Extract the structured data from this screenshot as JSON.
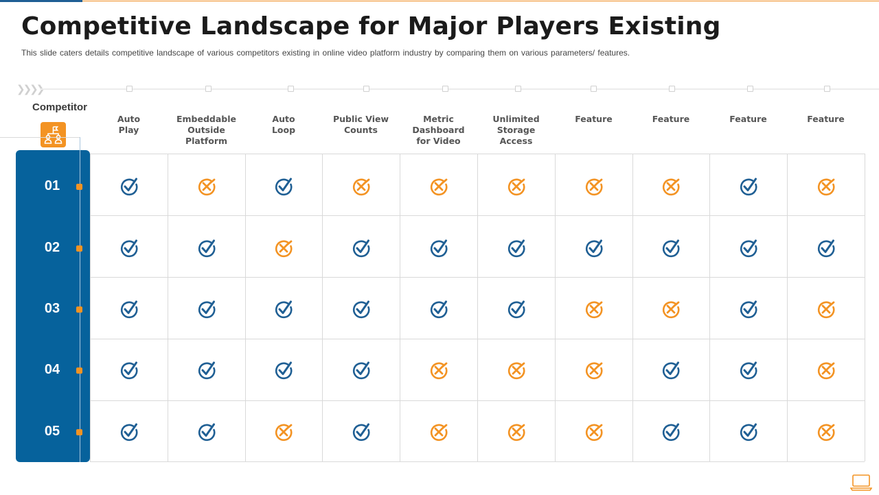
{
  "title": "Competitive Landscape for Major Players Existing",
  "subtitle": "This slide caters details competitive landscape of various  competitors existing in online video platform industry by comparing them on various  parameters/  features.",
  "competitor_label": "Competitor",
  "columns": [
    {
      "label": "Auto\nPlay"
    },
    {
      "label": "Embeddable\nOutside\nPlatform"
    },
    {
      "label": "Auto\nLoop"
    },
    {
      "label": "Public View\nCounts"
    },
    {
      "label": "Metric\nDashboard\nfor Video"
    },
    {
      "label": "Unlimited\nStorage\nAccess"
    },
    {
      "label": "Feature"
    },
    {
      "label": "Feature"
    },
    {
      "label": "Feature"
    },
    {
      "label": "Feature"
    }
  ],
  "rows": [
    {
      "label": "01",
      "values": [
        "check",
        "cross",
        "check",
        "cross",
        "cross",
        "cross",
        "cross",
        "cross",
        "check",
        "cross"
      ]
    },
    {
      "label": "02",
      "values": [
        "check",
        "check",
        "cross",
        "check",
        "check",
        "check",
        "check",
        "check",
        "check",
        "check"
      ]
    },
    {
      "label": "03",
      "values": [
        "check",
        "check",
        "check",
        "check",
        "check",
        "check",
        "cross",
        "cross",
        "check",
        "cross"
      ]
    },
    {
      "label": "04",
      "values": [
        "check",
        "check",
        "check",
        "check",
        "cross",
        "cross",
        "cross",
        "check",
        "check",
        "cross"
      ]
    },
    {
      "label": "05",
      "values": [
        "check",
        "check",
        "cross",
        "check",
        "cross",
        "cross",
        "cross",
        "check",
        "check",
        "cross"
      ]
    }
  ],
  "colors": {
    "check": "#1f5f94",
    "cross": "#f39323",
    "sidebar": "#06629c"
  },
  "icons": {
    "competitor": "people-network-icon",
    "check": "check-icon",
    "cross": "cross-icon",
    "footer": "laptop-icon"
  }
}
